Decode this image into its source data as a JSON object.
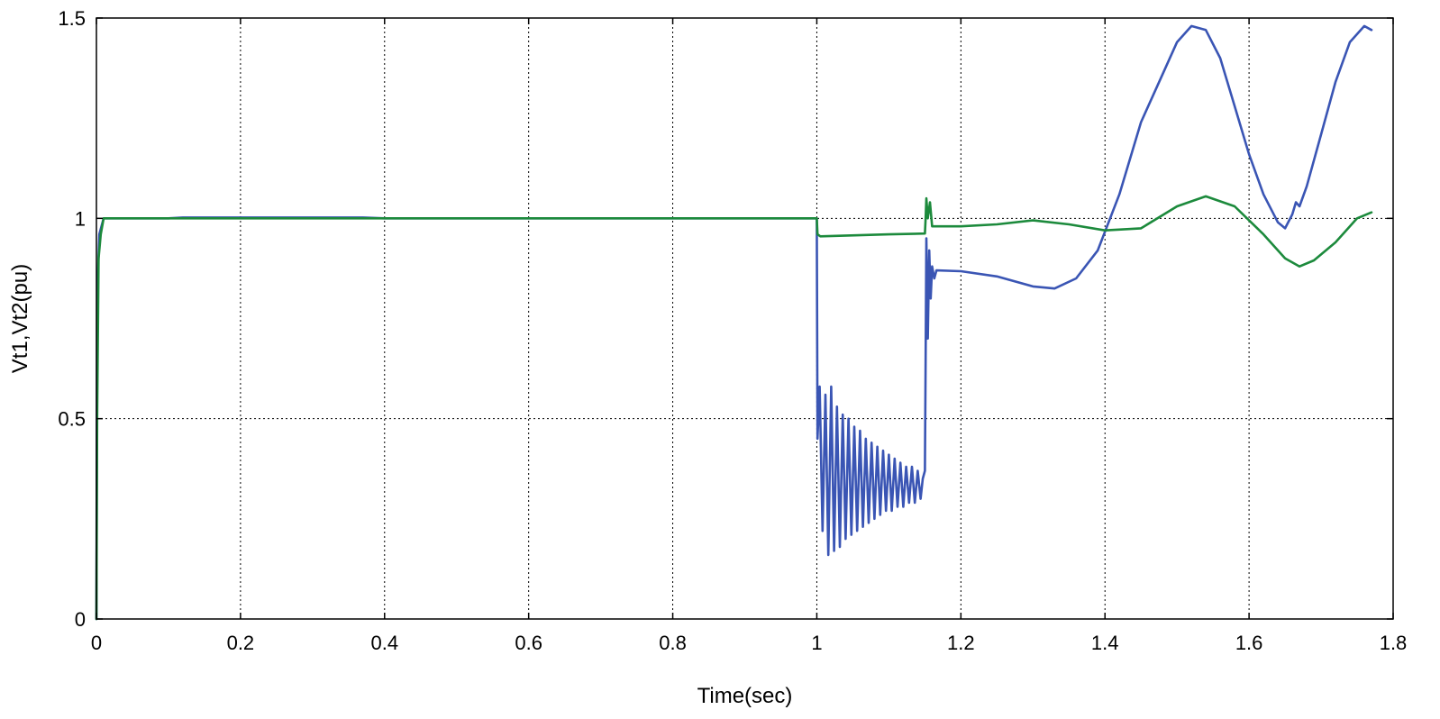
{
  "chart_data": {
    "type": "line",
    "title": "",
    "xlabel": "Time(sec)",
    "ylabel": "Vt1,Vt2(pu)",
    "xlim": [
      0,
      1.8
    ],
    "ylim": [
      0,
      1.5
    ],
    "x_ticks": [
      0,
      0.2,
      0.4,
      0.6,
      0.8,
      1,
      1.2,
      1.4,
      1.6,
      1.8
    ],
    "x_tick_labels": [
      "0",
      "0.2",
      "0.4",
      "0.6",
      "0.8",
      "1",
      "1.2",
      "1.4",
      "1.6",
      "1.8"
    ],
    "y_ticks": [
      0,
      0.5,
      1,
      1.5
    ],
    "y_tick_labels": [
      "0",
      "0.5",
      "1",
      "1.5"
    ],
    "grid": true,
    "legend": "none",
    "series": [
      {
        "color": "#3a55b4",
        "points": [
          [
            0,
            0
          ],
          [
            0.001,
            0.8
          ],
          [
            0.004,
            0.96
          ],
          [
            0.01,
            1.0
          ],
          [
            0.1,
            1.0
          ],
          [
            0.12,
            1.002
          ],
          [
            0.3,
            1.002
          ],
          [
            0.37,
            1.002
          ],
          [
            0.4,
            1.0
          ],
          [
            0.999,
            1.0
          ],
          [
            1.0,
            1.0
          ],
          [
            1.001,
            0.45
          ],
          [
            1.004,
            0.58
          ],
          [
            1.008,
            0.22
          ],
          [
            1.012,
            0.56
          ],
          [
            1.016,
            0.16
          ],
          [
            1.02,
            0.58
          ],
          [
            1.024,
            0.17
          ],
          [
            1.028,
            0.53
          ],
          [
            1.032,
            0.18
          ],
          [
            1.036,
            0.51
          ],
          [
            1.04,
            0.2
          ],
          [
            1.044,
            0.5
          ],
          [
            1.048,
            0.21
          ],
          [
            1.052,
            0.48
          ],
          [
            1.056,
            0.22
          ],
          [
            1.06,
            0.47
          ],
          [
            1.064,
            0.23
          ],
          [
            1.068,
            0.45
          ],
          [
            1.072,
            0.24
          ],
          [
            1.076,
            0.44
          ],
          [
            1.08,
            0.25
          ],
          [
            1.084,
            0.43
          ],
          [
            1.088,
            0.26
          ],
          [
            1.092,
            0.42
          ],
          [
            1.096,
            0.27
          ],
          [
            1.1,
            0.41
          ],
          [
            1.104,
            0.27
          ],
          [
            1.108,
            0.4
          ],
          [
            1.112,
            0.28
          ],
          [
            1.116,
            0.39
          ],
          [
            1.12,
            0.28
          ],
          [
            1.124,
            0.38
          ],
          [
            1.128,
            0.29
          ],
          [
            1.132,
            0.38
          ],
          [
            1.136,
            0.29
          ],
          [
            1.14,
            0.37
          ],
          [
            1.144,
            0.3
          ],
          [
            1.147,
            0.35
          ],
          [
            1.15,
            0.37
          ],
          [
            1.151,
            0.65
          ],
          [
            1.152,
            0.95
          ],
          [
            1.154,
            0.7
          ],
          [
            1.156,
            0.92
          ],
          [
            1.158,
            0.8
          ],
          [
            1.16,
            0.88
          ],
          [
            1.163,
            0.85
          ],
          [
            1.166,
            0.87
          ],
          [
            1.2,
            0.868
          ],
          [
            1.25,
            0.855
          ],
          [
            1.3,
            0.83
          ],
          [
            1.33,
            0.825
          ],
          [
            1.36,
            0.85
          ],
          [
            1.39,
            0.92
          ],
          [
            1.42,
            1.06
          ],
          [
            1.45,
            1.24
          ],
          [
            1.48,
            1.36
          ],
          [
            1.5,
            1.44
          ],
          [
            1.52,
            1.48
          ],
          [
            1.54,
            1.47
          ],
          [
            1.56,
            1.4
          ],
          [
            1.58,
            1.28
          ],
          [
            1.6,
            1.16
          ],
          [
            1.62,
            1.06
          ],
          [
            1.64,
            0.99
          ],
          [
            1.65,
            0.975
          ],
          [
            1.66,
            1.01
          ],
          [
            1.665,
            1.04
          ],
          [
            1.67,
            1.03
          ],
          [
            1.68,
            1.08
          ],
          [
            1.7,
            1.21
          ],
          [
            1.72,
            1.34
          ],
          [
            1.74,
            1.44
          ],
          [
            1.76,
            1.48
          ],
          [
            1.77,
            1.47
          ]
        ]
      },
      {
        "color": "#1c8a3c",
        "points": [
          [
            0,
            0
          ],
          [
            0.001,
            0.5
          ],
          [
            0.003,
            0.9
          ],
          [
            0.006,
            0.96
          ],
          [
            0.01,
            1.0
          ],
          [
            0.5,
            1.0
          ],
          [
            1.0,
            1.0
          ],
          [
            1.001,
            0.96
          ],
          [
            1.005,
            0.955
          ],
          [
            1.1,
            0.96
          ],
          [
            1.15,
            0.962
          ],
          [
            1.151,
            1.0
          ],
          [
            1.152,
            1.05
          ],
          [
            1.154,
            1.0
          ],
          [
            1.157,
            1.04
          ],
          [
            1.16,
            0.98
          ],
          [
            1.2,
            0.98
          ],
          [
            1.25,
            0.985
          ],
          [
            1.3,
            0.995
          ],
          [
            1.35,
            0.985
          ],
          [
            1.4,
            0.97
          ],
          [
            1.45,
            0.975
          ],
          [
            1.5,
            1.03
          ],
          [
            1.54,
            1.055
          ],
          [
            1.58,
            1.03
          ],
          [
            1.62,
            0.96
          ],
          [
            1.65,
            0.9
          ],
          [
            1.67,
            0.88
          ],
          [
            1.69,
            0.895
          ],
          [
            1.72,
            0.94
          ],
          [
            1.75,
            1.0
          ],
          [
            1.77,
            1.015
          ]
        ]
      }
    ]
  }
}
